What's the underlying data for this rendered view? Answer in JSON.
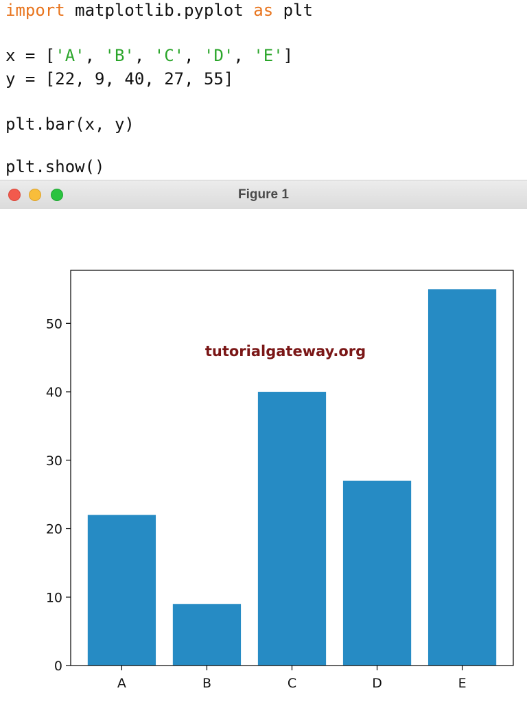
{
  "code": {
    "line1": {
      "kw1": "import",
      "mid": " matplotlib.pyplot ",
      "kw2": "as",
      "end": " plt"
    },
    "line2": {
      "p1": "x = [",
      "s1": "'A'",
      "c1": ", ",
      "s2": "'B'",
      "c2": ", ",
      "s3": "'C'",
      "c3": ", ",
      "s4": "'D'",
      "c4": ", ",
      "s5": "'E'",
      "p2": "]"
    },
    "line3": "y = [22, 9, 40, 27, 55]",
    "line4": "plt.bar(x, y)",
    "line5": "plt.show()"
  },
  "window": {
    "title": "Figure 1",
    "controls": [
      "close",
      "minimize",
      "zoom"
    ]
  },
  "watermark": "tutorialgateway.org",
  "colors": {
    "bar": "#268bc4",
    "keyword": "#e8741d",
    "string": "#2aa52a",
    "watermark": "#7a1616"
  },
  "chart_data": {
    "type": "bar",
    "categories": [
      "A",
      "B",
      "C",
      "D",
      "E"
    ],
    "values": [
      22,
      9,
      40,
      27,
      55
    ],
    "yticks": [
      0,
      10,
      20,
      30,
      40,
      50
    ],
    "ylim": [
      0,
      57.75
    ],
    "title": "",
    "xlabel": "",
    "ylabel": ""
  }
}
